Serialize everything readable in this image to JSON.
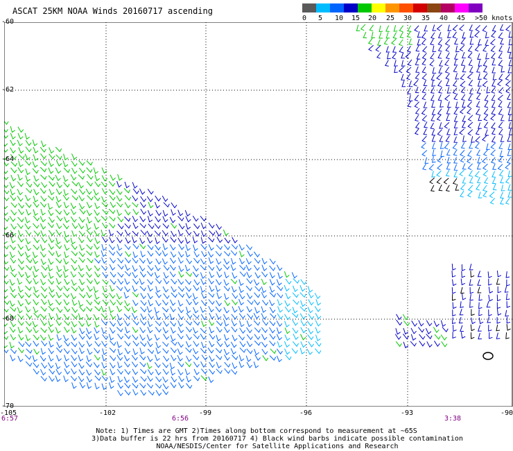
{
  "title": "ASCAT 25KM NOAA Winds 20160717 ascending",
  "scale": {
    "colors": [
      "#5a5a5a",
      "#00bcff",
      "#0064ff",
      "#0000c8",
      "#00c800",
      "#ffff00",
      "#ff9600",
      "#ff5000",
      "#d20000",
      "#8b4513",
      "#b40064",
      "#ff00ff",
      "#8000c0"
    ],
    "labels": [
      "0",
      "5",
      "10",
      "15",
      "20",
      "25",
      "30",
      "35",
      "40",
      "45",
      ">50 knots"
    ]
  },
  "axes": {
    "lat_labels": [
      "-60",
      "-62",
      "-64",
      "-66",
      "-68",
      "-70"
    ],
    "lon_labels": [
      "-105",
      "-102",
      "-99",
      "-96",
      "-93",
      "-90"
    ]
  },
  "times": [
    "6:57",
    "6:56",
    "3:38"
  ],
  "notes": [
    "Note: 1) Times are GMT 2)Times along bottom correspond to measurement at ~65S",
    "3)Data buffer is 22 hrs from 20160717 4) Black wind barbs indicate possible contamination",
    "NOAA/NESDIS/Center for Satellite Applications and Research"
  ]
}
